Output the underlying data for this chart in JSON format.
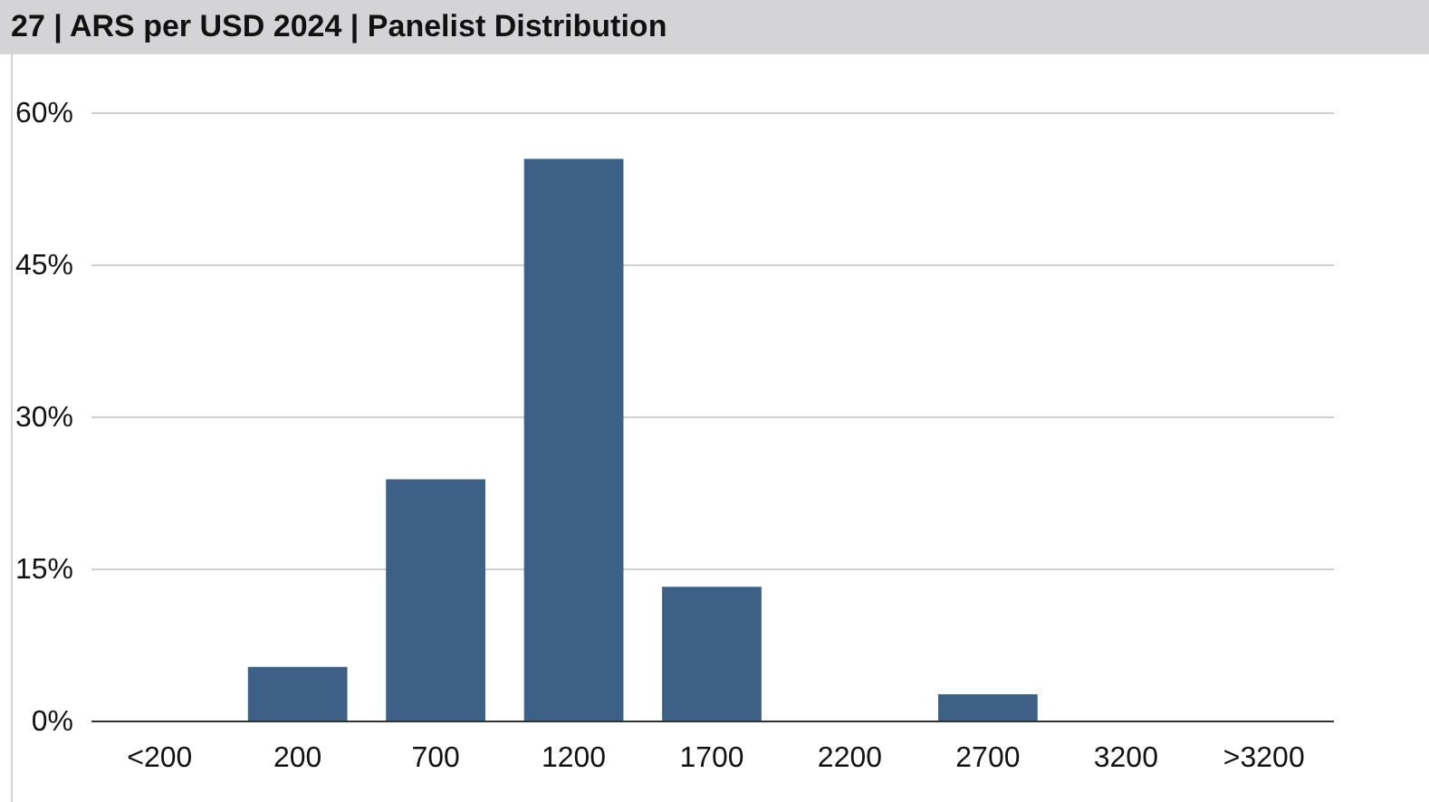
{
  "chart_data": {
    "type": "bar",
    "title": "27 | ARS per USD 2024 | Panelist Distribution",
    "categories": [
      "<200",
      "200",
      "700",
      "1200",
      "1700",
      "2200",
      "2700",
      "3200",
      ">3200"
    ],
    "values": [
      0,
      5.3,
      23.8,
      55.4,
      13.2,
      0,
      2.6,
      0,
      0
    ],
    "color": "#3d6186",
    "ylim": [
      0,
      60
    ],
    "yticks": [
      {
        "value": 0,
        "label": "0%"
      },
      {
        "value": 15,
        "label": "15%"
      },
      {
        "value": 30,
        "label": "30%"
      },
      {
        "value": 45,
        "label": "45%"
      },
      {
        "value": 60,
        "label": "60%"
      }
    ],
    "grid": "y"
  }
}
